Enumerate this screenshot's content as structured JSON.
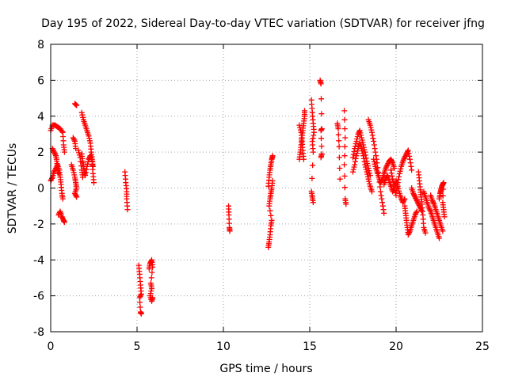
{
  "chart_data": {
    "type": "scatter",
    "title": "Day 195 of 2022, Sidereal Day-to-day VTEC variation (SDTVAR) for receiver jfng",
    "xlabel": "GPS time / hours",
    "ylabel": "SDTVAR / TECUs",
    "xlim": [
      0,
      25
    ],
    "ylim": [
      -8,
      8
    ],
    "xticks": [
      0,
      5,
      10,
      15,
      20,
      25
    ],
    "yticks": [
      -8,
      -6,
      -4,
      -2,
      0,
      2,
      4,
      6,
      8
    ],
    "grid": true,
    "marker": "+",
    "marker_color": "#ff0000",
    "series": [
      {
        "name": "SDTVAR",
        "tracks": [
          [
            [
              0.0,
              3.2
            ],
            [
              0.1,
              3.5
            ],
            [
              0.25,
              3.5
            ],
            [
              0.4,
              3.4
            ],
            [
              0.55,
              3.3
            ],
            [
              0.7,
              3.1
            ],
            [
              0.75,
              2.4
            ],
            [
              0.8,
              2.0
            ]
          ],
          [
            [
              0.0,
              0.4
            ],
            [
              0.1,
              0.6
            ],
            [
              0.2,
              0.9
            ],
            [
              0.3,
              1.1
            ],
            [
              0.4,
              1.3
            ],
            [
              0.5,
              1.0
            ],
            [
              0.55,
              0.6
            ],
            [
              0.6,
              0.2
            ],
            [
              0.65,
              -0.3
            ],
            [
              0.7,
              -0.6
            ]
          ],
          [
            [
              0.1,
              2.2
            ],
            [
              0.2,
              2.0
            ],
            [
              0.3,
              1.8
            ],
            [
              0.35,
              1.5
            ],
            [
              0.4,
              1.1
            ],
            [
              0.45,
              0.8
            ]
          ],
          [
            [
              0.45,
              -1.5
            ],
            [
              0.55,
              -1.3
            ],
            [
              0.65,
              -1.6
            ],
            [
              0.75,
              -1.8
            ],
            [
              0.8,
              -1.9
            ]
          ],
          [
            [
              1.2,
              1.3
            ],
            [
              1.3,
              1.0
            ],
            [
              1.4,
              0.6
            ],
            [
              1.45,
              0.3
            ],
            [
              1.5,
              0.0
            ],
            [
              1.4,
              -0.3
            ],
            [
              1.5,
              -0.5
            ]
          ],
          [
            [
              1.3,
              2.8
            ],
            [
              1.4,
              2.6
            ],
            [
              1.45,
              2.2
            ]
          ],
          [
            [
              1.4,
              4.7
            ],
            [
              1.5,
              4.6
            ]
          ],
          [
            [
              1.8,
              4.2
            ],
            [
              1.9,
              3.8
            ],
            [
              2.0,
              3.5
            ],
            [
              2.1,
              3.2
            ],
            [
              2.2,
              2.9
            ],
            [
              2.3,
              2.5
            ],
            [
              2.35,
              2.0
            ],
            [
              2.4,
              1.6
            ],
            [
              2.45,
              1.2
            ]
          ],
          [
            [
              1.8,
              1.9
            ],
            [
              1.85,
              1.5
            ],
            [
              1.9,
              1.2
            ],
            [
              1.95,
              0.9
            ],
            [
              2.0,
              0.7
            ],
            [
              2.1,
              1.2
            ],
            [
              2.2,
              1.6
            ],
            [
              2.3,
              1.8
            ],
            [
              2.4,
              1.5
            ],
            [
              2.45,
              0.8
            ],
            [
              2.5,
              0.3
            ]
          ],
          [
            [
              1.6,
              2.1
            ],
            [
              1.7,
              1.7
            ],
            [
              1.8,
              1.0
            ],
            [
              1.85,
              0.6
            ]
          ],
          [
            [
              4.3,
              0.9
            ],
            [
              4.35,
              0.3
            ],
            [
              4.4,
              -0.2
            ],
            [
              4.4,
              -0.6
            ],
            [
              4.45,
              -1.2
            ]
          ],
          [
            [
              5.1,
              -4.3
            ],
            [
              5.15,
              -4.8
            ],
            [
              5.2,
              -5.4
            ],
            [
              5.25,
              -5.9
            ],
            [
              5.15,
              -6.1
            ],
            [
              5.2,
              -6.9
            ],
            [
              5.25,
              -7.0
            ]
          ],
          [
            [
              5.7,
              -4.5
            ],
            [
              5.75,
              -4.2
            ],
            [
              5.85,
              -4.0
            ],
            [
              5.9,
              -4.4
            ],
            [
              5.8,
              -5.3
            ],
            [
              5.85,
              -5.6
            ],
            [
              5.75,
              -6.0
            ],
            [
              5.85,
              -6.3
            ],
            [
              5.9,
              -6.1
            ]
          ],
          [
            [
              10.3,
              -1.0
            ],
            [
              10.32,
              -1.5
            ],
            [
              10.35,
              -2.2
            ],
            [
              10.37,
              -2.4
            ]
          ],
          [
            [
              12.6,
              -3.3
            ],
            [
              12.65,
              -3.0
            ],
            [
              12.7,
              -2.6
            ],
            [
              12.75,
              -2.1
            ],
            [
              12.8,
              -1.8
            ],
            [
              12.65,
              -1.0
            ],
            [
              12.7,
              -0.6
            ],
            [
              12.75,
              -0.3
            ],
            [
              12.8,
              0.0
            ],
            [
              12.85,
              0.4
            ]
          ],
          [
            [
              12.6,
              0.1
            ],
            [
              12.65,
              0.6
            ],
            [
              12.7,
              1.0
            ],
            [
              12.75,
              1.3
            ],
            [
              12.8,
              1.6
            ],
            [
              12.85,
              1.8
            ]
          ],
          [
            [
              14.4,
              1.6
            ],
            [
              14.45,
              2.0
            ],
            [
              14.5,
              2.4
            ],
            [
              14.55,
              2.8
            ],
            [
              14.6,
              3.2
            ],
            [
              14.65,
              3.6
            ],
            [
              14.7,
              4.0
            ],
            [
              14.7,
              4.3
            ]
          ],
          [
            [
              14.4,
              3.5
            ],
            [
              14.5,
              3.1
            ],
            [
              14.55,
              2.6
            ],
            [
              14.6,
              2.1
            ],
            [
              14.65,
              1.6
            ]
          ],
          [
            [
              15.1,
              4.9
            ],
            [
              15.15,
              4.2
            ],
            [
              15.2,
              3.6
            ],
            [
              15.25,
              3.1
            ],
            [
              15.15,
              2.6
            ],
            [
              15.2,
              2.0
            ],
            [
              15.1,
              -0.2
            ],
            [
              15.15,
              -0.5
            ],
            [
              15.2,
              -0.8
            ]
          ],
          [
            [
              15.6,
              6.0
            ],
            [
              15.65,
              5.8
            ],
            [
              15.7,
              3.3
            ],
            [
              15.65,
              3.2
            ],
            [
              15.7,
              1.9
            ],
            [
              15.65,
              1.7
            ]
          ],
          [
            [
              16.6,
              3.6
            ],
            [
              16.65,
              3.3
            ],
            [
              16.7,
              2.3
            ],
            [
              16.75,
              0.5
            ]
          ],
          [
            [
              17.0,
              4.3
            ],
            [
              17.05,
              2.8
            ],
            [
              17.0,
              1.3
            ],
            [
              17.05,
              -0.6
            ],
            [
              17.1,
              -0.9
            ]
          ],
          [
            [
              17.5,
              1.7
            ],
            [
              17.6,
              2.2
            ],
            [
              17.7,
              2.6
            ],
            [
              17.8,
              3.0
            ],
            [
              17.9,
              3.2
            ],
            [
              18.0,
              2.8
            ],
            [
              18.1,
              2.4
            ],
            [
              18.2,
              2.0
            ],
            [
              18.3,
              1.5
            ],
            [
              18.4,
              1.1
            ],
            [
              18.5,
              0.7
            ]
          ],
          [
            [
              17.5,
              0.9
            ],
            [
              17.6,
              1.3
            ],
            [
              17.7,
              1.8
            ],
            [
              17.8,
              2.2
            ],
            [
              17.9,
              2.5
            ],
            [
              18.0,
              2.2
            ],
            [
              18.1,
              1.8
            ],
            [
              18.2,
              1.3
            ],
            [
              18.3,
              0.9
            ],
            [
              18.4,
              0.5
            ],
            [
              18.5,
              0.1
            ],
            [
              18.6,
              -0.2
            ]
          ],
          [
            [
              18.4,
              3.8
            ],
            [
              18.5,
              3.5
            ],
            [
              18.6,
              3.1
            ],
            [
              18.7,
              2.6
            ],
            [
              18.8,
              2.0
            ],
            [
              18.9,
              1.4
            ],
            [
              19.0,
              0.6
            ],
            [
              19.1,
              -0.2
            ],
            [
              19.2,
              -0.8
            ],
            [
              19.3,
              -1.4
            ]
          ],
          [
            [
              18.7,
              1.6
            ],
            [
              18.8,
              1.2
            ],
            [
              18.9,
              0.9
            ],
            [
              19.0,
              0.6
            ],
            [
              19.1,
              0.3
            ],
            [
              19.2,
              0.5
            ],
            [
              19.3,
              0.8
            ],
            [
              19.4,
              1.1
            ],
            [
              19.5,
              1.3
            ],
            [
              19.6,
              1.5
            ],
            [
              19.7,
              1.6
            ],
            [
              19.8,
              1.4
            ],
            [
              19.9,
              1.1
            ]
          ],
          [
            [
              19.3,
              0.2
            ],
            [
              19.4,
              0.5
            ],
            [
              19.5,
              0.7
            ],
            [
              19.6,
              0.4
            ],
            [
              19.7,
              0.1
            ],
            [
              19.8,
              -0.2
            ],
            [
              19.9,
              0.1
            ],
            [
              20.0,
              0.4
            ],
            [
              20.1,
              0.1
            ],
            [
              20.2,
              -0.3
            ],
            [
              20.3,
              -0.6
            ],
            [
              20.4,
              -0.8
            ],
            [
              20.5,
              -0.6
            ]
          ],
          [
            [
              19.7,
              1.0
            ],
            [
              19.8,
              0.5
            ],
            [
              19.9,
              0.0
            ],
            [
              20.0,
              -0.4
            ],
            [
              20.1,
              0.3
            ],
            [
              20.2,
              0.8
            ],
            [
              20.3,
              1.2
            ],
            [
              20.4,
              1.5
            ],
            [
              20.5,
              1.7
            ],
            [
              20.6,
              1.9
            ],
            [
              20.7,
              2.1
            ],
            [
              20.8,
              1.6
            ],
            [
              20.9,
              1.0
            ]
          ],
          [
            [
              20.5,
              -1.0
            ],
            [
              20.55,
              -1.4
            ],
            [
              20.6,
              -1.8
            ],
            [
              20.65,
              -2.2
            ],
            [
              20.7,
              -2.6
            ],
            [
              20.8,
              -2.4
            ],
            [
              20.9,
              -2.1
            ],
            [
              21.0,
              -1.8
            ],
            [
              21.1,
              -1.5
            ],
            [
              21.2,
              -1.3
            ]
          ],
          [
            [
              20.9,
              0.0
            ],
            [
              21.0,
              -0.3
            ],
            [
              21.1,
              -0.5
            ],
            [
              21.2,
              -0.7
            ],
            [
              21.3,
              -0.9
            ],
            [
              21.4,
              -1.1
            ],
            [
              21.5,
              -1.3
            ]
          ],
          [
            [
              21.3,
              0.9
            ],
            [
              21.35,
              0.4
            ],
            [
              21.4,
              -0.1
            ],
            [
              21.45,
              -0.5
            ],
            [
              21.5,
              -0.9
            ],
            [
              21.55,
              -1.5
            ],
            [
              21.6,
              -2.2
            ],
            [
              21.7,
              -2.5
            ]
          ],
          [
            [
              21.6,
              -0.2
            ],
            [
              21.7,
              -0.5
            ],
            [
              21.8,
              -0.8
            ],
            [
              21.9,
              -1.1
            ],
            [
              22.0,
              -1.3
            ],
            [
              22.1,
              -1.6
            ],
            [
              22.2,
              -1.9
            ],
            [
              22.3,
              -2.2
            ],
            [
              22.4,
              -2.5
            ],
            [
              22.5,
              -2.8
            ]
          ],
          [
            [
              22.0,
              -0.4
            ],
            [
              22.1,
              -0.7
            ],
            [
              22.2,
              -0.9
            ],
            [
              22.3,
              -1.2
            ],
            [
              22.4,
              -1.5
            ],
            [
              22.5,
              -1.8
            ],
            [
              22.6,
              -2.1
            ],
            [
              22.7,
              -2.4
            ]
          ],
          [
            [
              22.5,
              -0.6
            ],
            [
              22.55,
              -0.3
            ],
            [
              22.6,
              -0.1
            ],
            [
              22.65,
              0.1
            ],
            [
              22.7,
              0.2
            ],
            [
              22.75,
              0.3
            ],
            [
              22.7,
              -0.8
            ],
            [
              22.75,
              -1.2
            ],
            [
              22.8,
              -1.6
            ]
          ]
        ]
      }
    ]
  }
}
